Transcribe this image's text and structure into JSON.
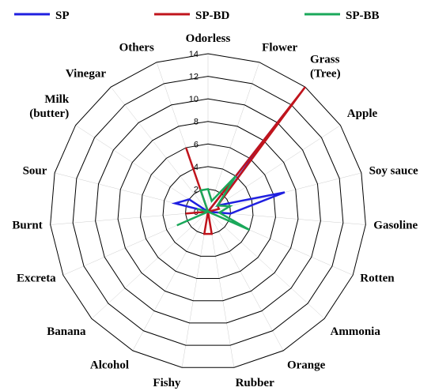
{
  "chart_data": {
    "type": "radar",
    "categories": [
      "Odorless",
      "Flower",
      "Grass (Tree)",
      "Apple",
      "Soy sauce",
      "Gasoline",
      "Rotten",
      "Ammonia",
      "Orange",
      "Rubber",
      "Fishy",
      "Alcohol",
      "Banana",
      "Excreta",
      "Burnt",
      "Sour",
      "Milk (butter)",
      "Vinegar",
      "Others"
    ],
    "category_lines": [
      [
        "Odorless"
      ],
      [
        "Flower"
      ],
      [
        "Grass",
        "(Tree)"
      ],
      [
        "Apple"
      ],
      [
        "Soy sauce"
      ],
      [
        "Gasoline"
      ],
      [
        "Rotten"
      ],
      [
        "Ammonia"
      ],
      [
        "Orange"
      ],
      [
        "Rubber"
      ],
      [
        "Fishy"
      ],
      [
        "Alcohol"
      ],
      [
        "Banana"
      ],
      [
        "Excreta"
      ],
      [
        "Burnt"
      ],
      [
        "Sour"
      ],
      [
        "Milk",
        "(butter)"
      ],
      [
        "Vinegar"
      ],
      [
        "Others"
      ]
    ],
    "radial_ticks": [
      "0",
      "2",
      "4",
      "6",
      "8",
      "10",
      "12",
      "14"
    ],
    "rlim": [
      0,
      14
    ],
    "grid": true,
    "legend_position": "top",
    "series": [
      {
        "name": "SP",
        "color": "#1f1fe0",
        "values": [
          0,
          0,
          11,
          1,
          7,
          2,
          0,
          0,
          0,
          0,
          0,
          0,
          0,
          0,
          0,
          3,
          2,
          0,
          0
        ]
      },
      {
        "name": "SP-BD",
        "color": "#c0141c",
        "values": [
          0,
          0,
          14,
          1,
          1,
          0,
          0,
          0,
          0,
          2,
          2,
          0,
          0,
          0,
          2,
          0,
          0,
          0,
          6
        ]
      },
      {
        "name": "SP-BB",
        "color": "#1aa85a",
        "values": [
          2,
          1,
          4,
          1,
          2,
          1,
          4,
          0,
          0,
          0,
          0,
          0,
          0,
          3,
          0,
          1,
          0,
          0,
          2
        ]
      }
    ]
  }
}
